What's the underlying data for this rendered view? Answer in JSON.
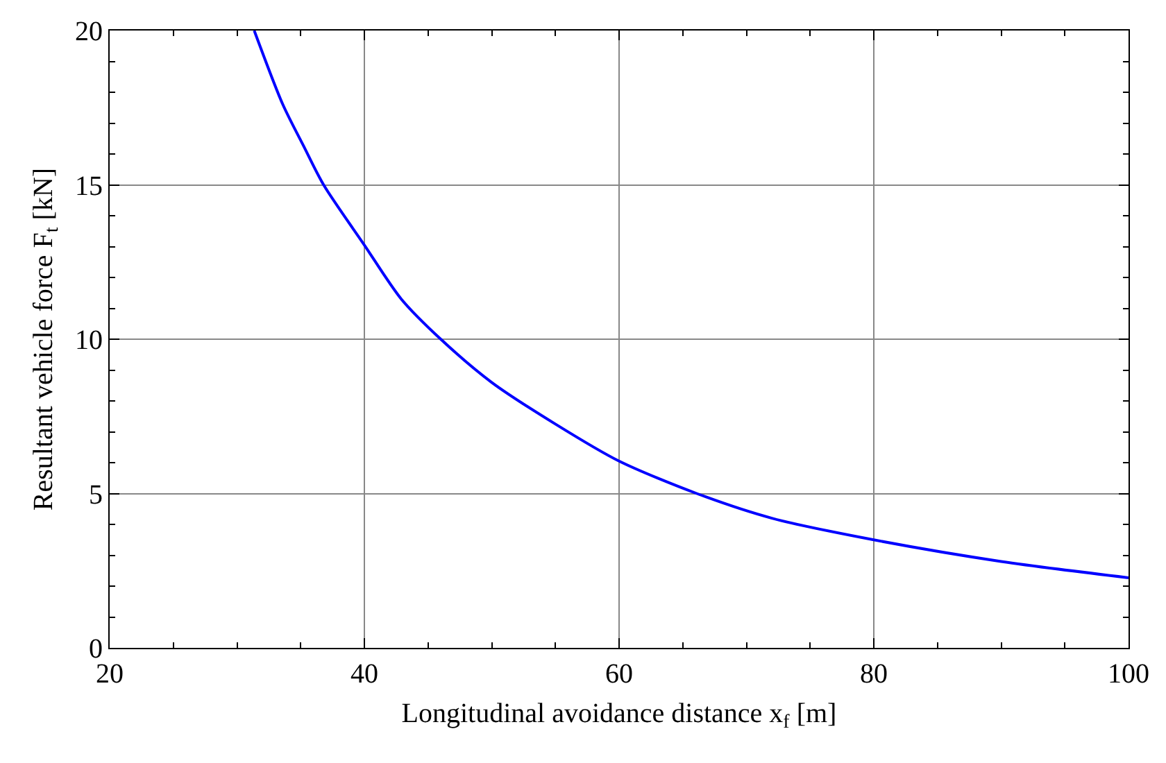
{
  "chart_data": {
    "type": "line",
    "xlabel": "Longitudinal avoidance distance x$_{f}$ [m]",
    "ylabel": "Resultant vehicle force F$_{t}$ [kN]",
    "x": [
      31.35,
      33.6,
      35.3,
      36.8,
      40,
      42.9,
      46,
      50,
      55,
      60,
      66.1,
      72,
      80,
      90,
      100
    ],
    "series": [
      {
        "color": "#0000ff",
        "values": [
          20,
          17.6,
          16.2,
          15,
          13.05,
          11.3,
          10,
          8.6,
          7.25,
          6.05,
          5,
          4.2,
          3.5,
          2.8,
          2.27
        ]
      }
    ],
    "xlim": [
      20,
      100
    ],
    "xticks": [
      20,
      40,
      60,
      80,
      100
    ],
    "ylim": [
      0,
      20
    ],
    "yticks": [
      0,
      5,
      10,
      15,
      20
    ],
    "grid": true,
    "marker": "none",
    "line_style": "solid"
  }
}
